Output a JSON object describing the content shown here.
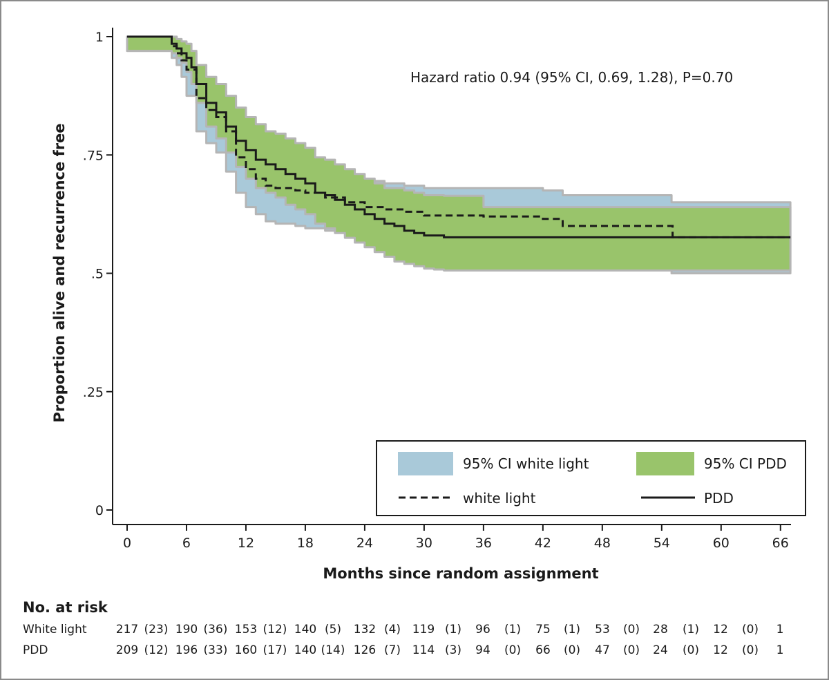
{
  "chart_data": {
    "type": "kaplan-meier",
    "xlabel": "Months since random assignment",
    "ylabel": "Proportion alive and recurrence free",
    "xlim": [
      0,
      66
    ],
    "ylim": [
      0,
      1
    ],
    "x_ticks": [
      0,
      6,
      12,
      18,
      24,
      30,
      36,
      42,
      48,
      54,
      60,
      66
    ],
    "x_tick_labels": [
      "0",
      "6",
      "12",
      "18",
      "24",
      "30",
      "36",
      "42",
      "48",
      "54",
      "60",
      "66"
    ],
    "y_ticks": [
      0,
      0.25,
      0.5,
      0.75,
      1
    ],
    "y_tick_labels": [
      "0",
      ".25",
      ".5",
      ".75",
      "1"
    ],
    "annotation": "Hazard ratio 0.94 (95% CI, 0.69, 1.28), P=0.70",
    "series": [
      {
        "name": "PDD",
        "style": "solid",
        "color": "#1a1a1a",
        "ci_label": "95% CI PDD",
        "ci_color": "#99c46b",
        "x": [
          0,
          3.5,
          4.5,
          5,
          5.5,
          6,
          6.5,
          7,
          8,
          9,
          10,
          11,
          12,
          13,
          14,
          15,
          16,
          17,
          18,
          19,
          20,
          21,
          22,
          23,
          24,
          25,
          26,
          27,
          28,
          29,
          30,
          31,
          32,
          36,
          42,
          48,
          54,
          60,
          67
        ],
        "y": [
          1,
          1,
          0.985,
          0.975,
          0.965,
          0.955,
          0.935,
          0.9,
          0.86,
          0.84,
          0.81,
          0.78,
          0.76,
          0.74,
          0.73,
          0.72,
          0.71,
          0.7,
          0.69,
          0.67,
          0.665,
          0.655,
          0.645,
          0.635,
          0.625,
          0.615,
          0.605,
          0.6,
          0.59,
          0.585,
          0.58,
          0.58,
          0.576,
          0.576,
          0.576,
          0.576,
          0.576,
          0.576,
          0.576
        ],
        "ci_upper": [
          1,
          1,
          1,
          0.995,
          0.99,
          0.985,
          0.97,
          0.94,
          0.915,
          0.9,
          0.875,
          0.85,
          0.83,
          0.815,
          0.8,
          0.795,
          0.785,
          0.775,
          0.765,
          0.745,
          0.74,
          0.73,
          0.72,
          0.71,
          0.7,
          0.69,
          0.68,
          0.68,
          0.675,
          0.67,
          0.665,
          0.665,
          0.664,
          0.64,
          0.64,
          0.64,
          0.64,
          0.64,
          0.64
        ],
        "ci_lower": [
          0.97,
          0.97,
          0.965,
          0.955,
          0.945,
          0.925,
          0.9,
          0.86,
          0.81,
          0.785,
          0.755,
          0.725,
          0.7,
          0.68,
          0.67,
          0.66,
          0.645,
          0.635,
          0.625,
          0.605,
          0.595,
          0.585,
          0.575,
          0.565,
          0.555,
          0.545,
          0.535,
          0.525,
          0.52,
          0.515,
          0.51,
          0.508,
          0.506,
          0.506,
          0.506,
          0.506,
          0.506,
          0.506,
          0.506
        ]
      },
      {
        "name": "white light",
        "style": "dashed",
        "color": "#1a1a1a",
        "ci_label": "95% CI white light",
        "ci_color": "#a9c9d9",
        "x": [
          0,
          3.5,
          4.5,
          5,
          5.5,
          6,
          7,
          8,
          9,
          10,
          11,
          12,
          13,
          14,
          15,
          17,
          18,
          20,
          22,
          24,
          26,
          28,
          30,
          36,
          42,
          44,
          48,
          55,
          55.1,
          60,
          67
        ],
        "y": [
          1,
          1,
          0.98,
          0.965,
          0.95,
          0.93,
          0.87,
          0.845,
          0.83,
          0.8,
          0.745,
          0.72,
          0.7,
          0.685,
          0.68,
          0.675,
          0.67,
          0.66,
          0.65,
          0.64,
          0.635,
          0.63,
          0.622,
          0.62,
          0.615,
          0.6,
          0.6,
          0.6,
          0.576,
          0.576,
          0.576
        ],
        "ci_upper": [
          1,
          1,
          1,
          0.99,
          0.985,
          0.965,
          0.925,
          0.905,
          0.885,
          0.865,
          0.83,
          0.8,
          0.78,
          0.765,
          0.75,
          0.73,
          0.72,
          0.71,
          0.7,
          0.695,
          0.69,
          0.685,
          0.68,
          0.68,
          0.675,
          0.665,
          0.665,
          0.65,
          0.65,
          0.65,
          0.65
        ],
        "ci_lower": [
          0.97,
          0.97,
          0.955,
          0.94,
          0.915,
          0.875,
          0.8,
          0.775,
          0.755,
          0.715,
          0.67,
          0.64,
          0.625,
          0.61,
          0.605,
          0.6,
          0.595,
          0.59,
          0.58,
          0.57,
          0.565,
          0.56,
          0.555,
          0.55,
          0.54,
          0.53,
          0.52,
          0.5,
          0.5,
          0.5,
          0.5
        ]
      }
    ],
    "legend": {
      "placement": "bottom-right",
      "entries": [
        {
          "label": "95% CI white light",
          "kind": "fill",
          "color": "#a9c9d9"
        },
        {
          "label": "95% CI PDD",
          "kind": "fill",
          "color": "#99c46b"
        },
        {
          "label": "white light",
          "kind": "dashed"
        },
        {
          "label": "PDD",
          "kind": "solid"
        }
      ]
    },
    "risk_table": {
      "title": "No. at risk",
      "rows": [
        {
          "label": "White light",
          "cells": [
            "217",
            "(23)",
            "190",
            "(36)",
            "153",
            "(12)",
            "140",
            "(5)",
            "132",
            "(4)",
            "119",
            "(1)",
            "96",
            "(1)",
            "75",
            "(1)",
            "53",
            "(0)",
            "28",
            "(1)",
            "12",
            "(0)",
            "1"
          ]
        },
        {
          "label": "PDD",
          "cells": [
            "209",
            "(12)",
            "196",
            "(33)",
            "160",
            "(17)",
            "140",
            "(14)",
            "126",
            "(7)",
            "114",
            "(3)",
            "94",
            "(0)",
            "66",
            "(0)",
            "47",
            "(0)",
            "24",
            "(0)",
            "12",
            "(0)",
            "1"
          ]
        }
      ]
    }
  }
}
